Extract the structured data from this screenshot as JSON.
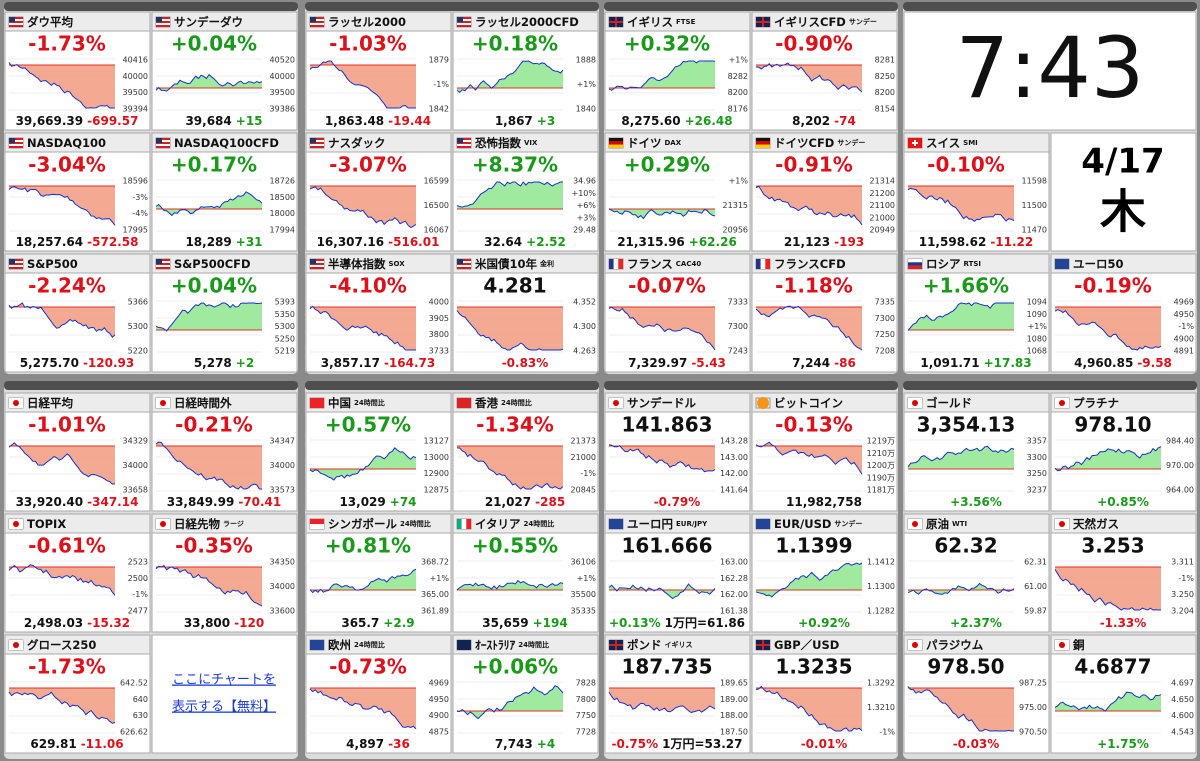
{
  "groups": [
    {
      "tiles": [
        {
          "name": "ダウ平均",
          "headline": "-1.73%",
          "footer": [
            "39,669.39",
            "-699.57"
          ],
          "axis": [
            "40416",
            "40000",
            "39500",
            "39394"
          ]
        },
        {
          "name": "NASDAQ100",
          "headline": "-3.04%",
          "footer": [
            "18,257.64",
            "-572.58"
          ],
          "axis": [
            "18596",
            "-3%",
            "-4%",
            "17995"
          ]
        },
        {
          "name": "S&P500",
          "headline": "-2.24%",
          "footer": [
            "5,275.70",
            "-120.93"
          ],
          "axis": [
            "5366",
            "5300",
            "5220"
          ]
        },
        {
          "name": "サンデーダウ",
          "headline": "+0.04%",
          "footer": [
            "39,684",
            "+15"
          ],
          "axis": [
            "40520",
            "40000",
            "39500",
            "39386"
          ]
        },
        {
          "name": "NASDAQ100CFD",
          "headline": "+0.17%",
          "footer": [
            "18,289",
            "+31"
          ],
          "axis": [
            "18726",
            "18500",
            "18000",
            "17994"
          ]
        },
        {
          "name": "S&P500CFD",
          "headline": "+0.04%",
          "footer": [
            "5,278",
            "+2"
          ],
          "axis": [
            "5393",
            "5350",
            "5300",
            "5250",
            "5219"
          ]
        }
      ]
    },
    {
      "tiles": [
        {
          "name": "ラッセル2000",
          "headline": "-1.03%",
          "footer": [
            "1,863.48",
            "-19.44"
          ],
          "axis": [
            "1879",
            "-1%",
            "1842"
          ]
        },
        {
          "name": "ナスダック",
          "headline": "-3.07%",
          "footer": [
            "16,307.16",
            "-516.01"
          ],
          "axis": [
            "16599",
            "16500",
            "16067"
          ]
        },
        {
          "name": "半導体指数",
          "sub": "SOX",
          "headline": "-4.10%",
          "footer": [
            "3,857.17",
            "-164.73"
          ],
          "axis": [
            "4000",
            "3905",
            "3800",
            "3733"
          ]
        },
        {
          "name": "ラッセル2000CFD",
          "headline": "+0.18%",
          "footer": [
            "1,867",
            "+3"
          ],
          "axis": [
            "1888",
            "+1%",
            "1840"
          ]
        },
        {
          "name": "恐怖指数",
          "sub": "VIX",
          "headline": "+8.37%",
          "footer": [
            "32.64",
            "+2.52"
          ],
          "axis": [
            "34.96",
            "+10%",
            "+6%",
            "+3%",
            "29.48"
          ]
        },
        {
          "name": "米国債10年",
          "sub": "金利",
          "headline": "4.281",
          "footer": [
            "-0.83%"
          ],
          "axis": [
            "4.352",
            "4.300",
            "4.263"
          ]
        }
      ]
    },
    {
      "tiles": [
        {
          "name": "イギリス",
          "sub": "FTSE",
          "headline": "+0.32%",
          "footer": [
            "8,275.60",
            "+26.48"
          ],
          "axis": [
            "+1%",
            "8282",
            "8200",
            "8176"
          ]
        },
        {
          "name": "ドイツ",
          "sub": "DAX",
          "headline": "+0.29%",
          "footer": [
            "21,315.96",
            "+62.26"
          ],
          "axis": [
            "+1%",
            "21315",
            "20956"
          ]
        },
        {
          "name": "フランス",
          "sub": "CAC40",
          "headline": "-0.07%",
          "footer": [
            "7,329.97",
            "-5.43"
          ],
          "axis": [
            "7333",
            "7300",
            "7243"
          ]
        },
        {
          "name": "イギリスCFD",
          "sub": "サンデー",
          "headline": "-0.90%",
          "footer": [
            "8,202",
            "-74"
          ],
          "axis": [
            "8281",
            "8250",
            "8200",
            "8154"
          ]
        },
        {
          "name": "ドイツCFD",
          "sub": "サンデー",
          "headline": "-0.91%",
          "footer": [
            "21,123",
            "-193"
          ],
          "axis": [
            "21314",
            "21200",
            "21100",
            "21000",
            "20949"
          ]
        },
        {
          "name": "フランスCFD",
          "headline": "-1.18%",
          "footer": [
            "7,244",
            "-86"
          ],
          "axis": [
            "7335",
            "7300",
            "7250",
            "7208"
          ]
        }
      ]
    },
    {
      "tiles": [
        {
          "name": "スイス",
          "sub": "SMI",
          "headline": "-0.10%",
          "footer": [
            "11,598.62",
            "-11.22"
          ],
          "axis": [
            "11598",
            "11500",
            "11470"
          ]
        },
        {
          "name": "ロシア",
          "sub": "RTSI",
          "headline": "+1.66%",
          "footer": [
            "1,091.71",
            "+17.83"
          ],
          "axis": [
            "1094",
            "1090",
            "+1%",
            "1080",
            "1068"
          ]
        },
        {
          "name": "ユーロ50",
          "headline": "-0.19%",
          "footer": [
            "4,960.85",
            "-9.58"
          ],
          "axis": [
            "4969",
            "4950",
            "-1%",
            "4900",
            "4891"
          ]
        }
      ]
    },
    {
      "tiles": [
        {
          "name": "日経平均",
          "headline": "-1.01%",
          "footer": [
            "33,920.40",
            "-347.14"
          ],
          "axis": [
            "34329",
            "34000",
            "33658"
          ]
        },
        {
          "name": "TOPIX",
          "headline": "-0.61%",
          "footer": [
            "2,498.03",
            "-15.32"
          ],
          "axis": [
            "2523",
            "2500",
            "-1%",
            "2477"
          ]
        },
        {
          "name": "グロース250",
          "headline": "-1.73%",
          "footer": [
            "629.81",
            "-11.06"
          ],
          "axis": [
            "642.52",
            "640",
            "630",
            "626.62"
          ]
        },
        {
          "name": "日経時間外",
          "headline": "-0.21%",
          "footer": [
            "33,849.99",
            "-70.41"
          ],
          "axis": [
            "34347",
            "34000",
            "33573"
          ]
        },
        {
          "name": "日経先物",
          "sub": "ラージ",
          "headline": "-0.35%",
          "footer": [
            "33,800",
            "-120"
          ],
          "axis": [
            "34350",
            "34000",
            "33600"
          ]
        }
      ]
    },
    {
      "tiles": [
        {
          "name": "中国",
          "sub": "24時間比",
          "headline": "+0.57%",
          "footer": [
            "13,029",
            "+74"
          ],
          "axis": [
            "13127",
            "13000",
            "12900",
            "12875"
          ]
        },
        {
          "name": "シンガポール",
          "sub": "24時間比",
          "headline": "+0.81%",
          "footer": [
            "365.7",
            "+2.9"
          ],
          "axis": [
            "368.72",
            "+1%",
            "365.00",
            "361.89"
          ]
        },
        {
          "name": "欧州",
          "sub": "24時間比",
          "headline": "-0.73%",
          "footer": [
            "4,897",
            "-36"
          ],
          "axis": [
            "4969",
            "4950",
            "4900",
            "4875"
          ]
        },
        {
          "name": "香港",
          "sub": "24時間比",
          "headline": "-1.34%",
          "footer": [
            "21,027",
            "-285"
          ],
          "axis": [
            "21373",
            "21000",
            "-1%",
            "20845"
          ]
        },
        {
          "name": "イタリア",
          "sub": "24時間比",
          "headline": "+0.55%",
          "footer": [
            "35,659",
            "+194"
          ],
          "axis": [
            "36106",
            "+1%",
            "35500",
            "35335"
          ]
        },
        {
          "name": "ｵｰｽﾄﾗﾘｱ",
          "sub": "24時間比",
          "headline": "+0.06%",
          "footer": [
            "7,743",
            "+4"
          ],
          "axis": [
            "7828",
            "7800",
            "7750",
            "7728"
          ]
        }
      ]
    },
    {
      "tiles": [
        {
          "name": "サンデードル",
          "headline": "141.863",
          "footer": [
            "-0.79%"
          ],
          "axis": [
            "143.28",
            "143.00",
            "142.00",
            "141.64"
          ]
        },
        {
          "name": "ユーロ円",
          "sub": "EUR/JPY",
          "headline": "161.666",
          "footer": [
            "+0.13%",
            "1万円=61.86"
          ],
          "axis": [
            "163.00",
            "162.28",
            "162.00",
            "161.38"
          ]
        },
        {
          "name": "ポンド",
          "sub": "イギリス",
          "headline": "187.735",
          "footer": [
            "-0.75%",
            "1万円=53.27"
          ],
          "axis": [
            "189.65",
            "189.00",
            "188.00",
            "187.50"
          ]
        },
        {
          "name": "ビットコイン",
          "headline": "-0.13%",
          "footer": [
            "11,982,758"
          ],
          "axis": [
            "1219万",
            "1210万",
            "1200万",
            "1190万",
            "1181万"
          ]
        },
        {
          "name": "EUR/USD",
          "sub": "サンデー",
          "headline": "1.1399",
          "footer": [
            "+0.92%"
          ],
          "axis": [
            "1.1412",
            "1.1300",
            "1.1282"
          ]
        },
        {
          "name": "GBP／USD",
          "headline": "1.3235",
          "footer": [
            "-0.01%"
          ],
          "axis": [
            "1.3292",
            "1.3210",
            "-1%"
          ]
        }
      ]
    },
    {
      "tiles": [
        {
          "name": "ゴールド",
          "headline": "3,354.13",
          "footer": [
            "+3.56%"
          ],
          "axis": [
            "3357",
            "3300",
            "3250",
            "3237"
          ]
        },
        {
          "name": "原油",
          "sub": "WTI",
          "headline": "62.32",
          "footer": [
            "+2.37%"
          ],
          "axis": [
            "62.31",
            "61.00",
            "59.87"
          ]
        },
        {
          "name": "パラジウム",
          "headline": "978.50",
          "footer": [
            "-0.03%"
          ],
          "axis": [
            "987.25",
            "975.00",
            "970.50"
          ]
        },
        {
          "name": "プラチナ",
          "headline": "978.10",
          "footer": [
            "+0.85%"
          ],
          "axis": [
            "984.40",
            "970.00",
            "964.00"
          ]
        },
        {
          "name": "天然ガス",
          "headline": "3.253",
          "footer": [
            "-1.33%"
          ],
          "axis": [
            "3.311",
            "-1%",
            "3.250",
            "3.204"
          ]
        },
        {
          "name": "銅",
          "headline": "4.6877",
          "footer": [
            "+1.75%"
          ],
          "axis": [
            "4.697",
            "4.650",
            "4.600",
            "4.543"
          ]
        }
      ]
    }
  ],
  "clock": {
    "time": "7:43",
    "date": "4/17",
    "weekday": "木"
  },
  "link": {
    "lines": [
      "ここにチャートを",
      "表示する【無料】"
    ]
  }
}
